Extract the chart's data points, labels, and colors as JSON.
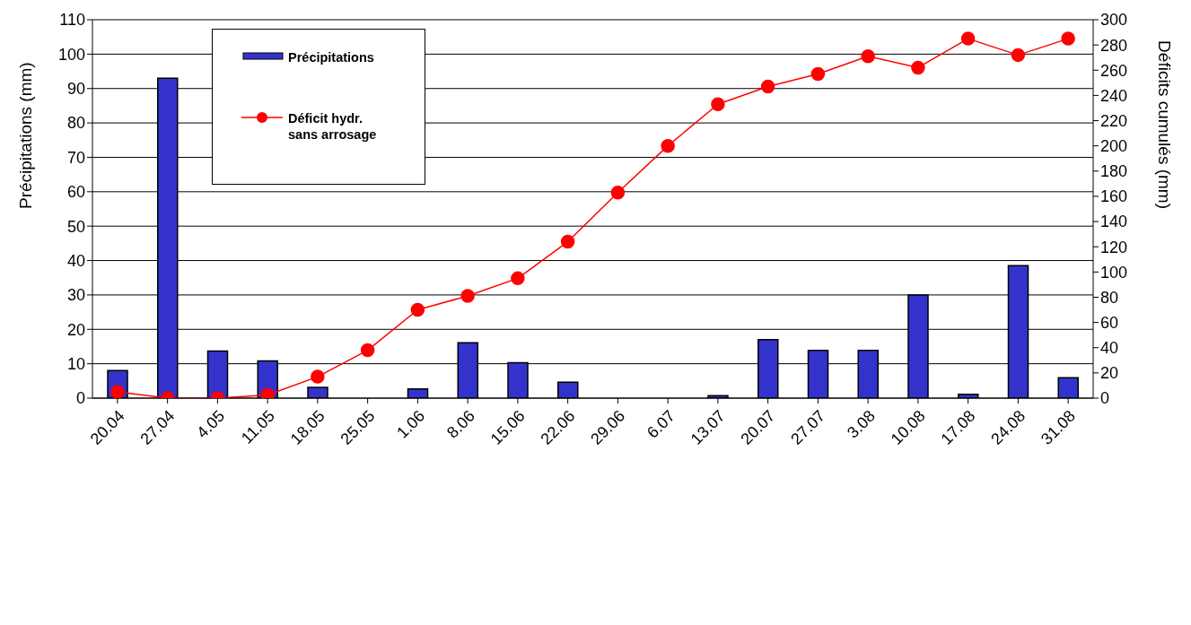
{
  "chart_data": {
    "type": "bar",
    "xlabel": null,
    "ylabel": "Précipitations (mm)",
    "y2label": "Déficits cumulés (mm)",
    "categories": [
      "20.04",
      "27.04",
      "4.05",
      "11.05",
      "18.05",
      "25.05",
      "1.06",
      "8.06",
      "15.06",
      "22.06",
      "29.06",
      "6.07",
      "13.07",
      "20.07",
      "27.07",
      "3.08",
      "10.08",
      "17.08",
      "24.08",
      "31.08"
    ],
    "series": [
      {
        "name": "Précipitations",
        "color": "#3333cc",
        "values": [
          8,
          93,
          13.7,
          10.8,
          3.1,
          0,
          2.7,
          16.1,
          10.3,
          4.6,
          0,
          0,
          0.7,
          17,
          13.9,
          13.9,
          30,
          1.1,
          38.5,
          5.9
        ]
      },
      {
        "name": "Déficit hydr.\nsans arrosage",
        "type": "line",
        "axis": "y2",
        "color": "#ff0000",
        "marker": "circle",
        "values": [
          5,
          0,
          0,
          2.5,
          17,
          38,
          70,
          81,
          95,
          124,
          163,
          200,
          233,
          247,
          257,
          271,
          262,
          285,
          272,
          285
        ]
      }
    ],
    "ylim": [
      0,
      110
    ],
    "yticks": [
      0,
      10,
      20,
      30,
      40,
      50,
      60,
      70,
      80,
      90,
      100,
      110
    ],
    "y2lim": [
      0,
      300
    ],
    "y2ticks": [
      0,
      20,
      40,
      60,
      80,
      100,
      120,
      140,
      160,
      180,
      200,
      220,
      240,
      260,
      280,
      300
    ],
    "grid": "y",
    "legend": "top left"
  }
}
